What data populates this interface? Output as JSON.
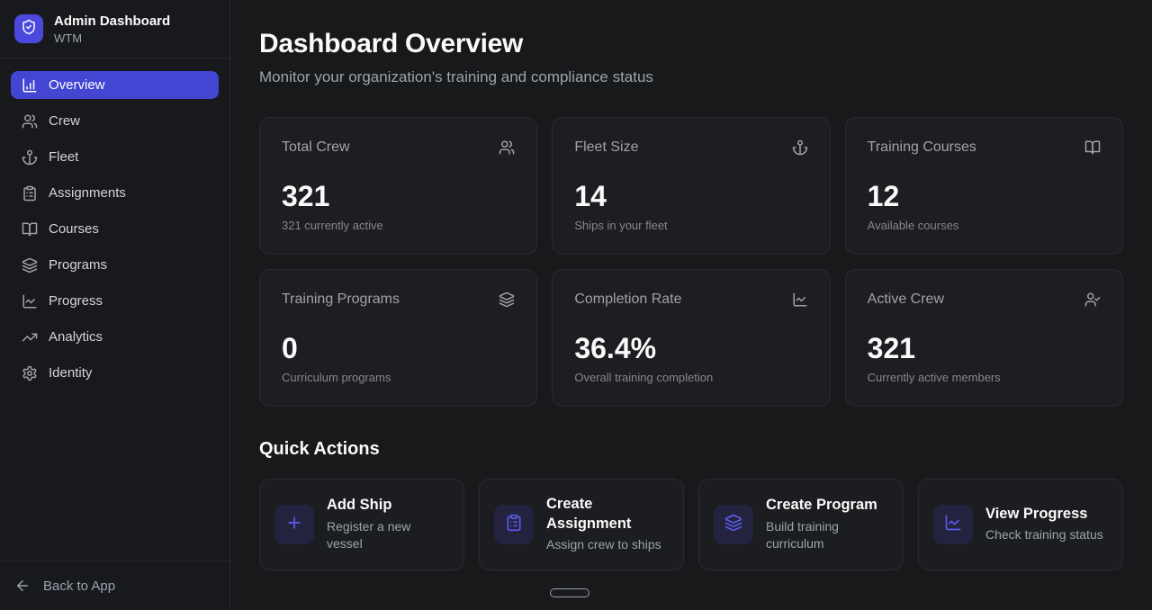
{
  "colors": {
    "accent": "#4b48dd",
    "active_nav_background": "#4346d3",
    "action_icon": "#5a5ceb",
    "card_background": "#1d1e21",
    "page_background": "#18191b"
  },
  "sidebar": {
    "logo_icon": "shield-check-icon",
    "title": "Admin Dashboard",
    "subtitle": "WTM",
    "nav_items": [
      {
        "label": "Overview",
        "icon": "bar-chart-icon",
        "active": true
      },
      {
        "label": "Crew",
        "icon": "users-icon",
        "active": false
      },
      {
        "label": "Fleet",
        "icon": "anchor-icon",
        "active": false
      },
      {
        "label": "Assignments",
        "icon": "clipboard-icon",
        "active": false
      },
      {
        "label": "Courses",
        "icon": "book-open-icon",
        "active": false
      },
      {
        "label": "Programs",
        "icon": "layers-icon",
        "active": false
      },
      {
        "label": "Progress",
        "icon": "chart-line-icon",
        "active": false
      },
      {
        "label": "Analytics",
        "icon": "trending-up-icon",
        "active": false
      },
      {
        "label": "Identity",
        "icon": "gear-icon",
        "active": false
      }
    ],
    "back_icon": "arrow-left-icon",
    "back_label": "Back to App"
  },
  "main": {
    "title": "Dashboard Overview",
    "subtitle": "Monitor your organization's training and compliance status",
    "stat_cards": [
      {
        "label": "Total Crew",
        "icon": "users-icon",
        "value": "321",
        "description": "321 currently active"
      },
      {
        "label": "Fleet Size",
        "icon": "anchor-icon",
        "value": "14",
        "description": "Ships in your fleet"
      },
      {
        "label": "Training Courses",
        "icon": "book-open-icon",
        "value": "12",
        "description": "Available courses"
      },
      {
        "label": "Training Programs",
        "icon": "layers-icon",
        "value": "0",
        "description": "Curriculum programs"
      },
      {
        "label": "Completion Rate",
        "icon": "chart-line-icon",
        "value": "36.4%",
        "description": "Overall training completion"
      },
      {
        "label": "Active Crew",
        "icon": "user-check-icon",
        "value": "321",
        "description": "Currently active members"
      }
    ],
    "quick_actions": {
      "title": "Quick Actions",
      "items": [
        {
          "title": "Add Ship",
          "icon": "plus-icon",
          "description": "Register a new vessel"
        },
        {
          "title": "Create Assignment",
          "icon": "clipboard-icon",
          "description": "Assign crew to ships"
        },
        {
          "title": "Create Program",
          "icon": "layers-icon",
          "description": "Build training curriculum"
        },
        {
          "title": "View Progress",
          "icon": "chart-line-icon",
          "description": "Check training status"
        }
      ]
    }
  }
}
